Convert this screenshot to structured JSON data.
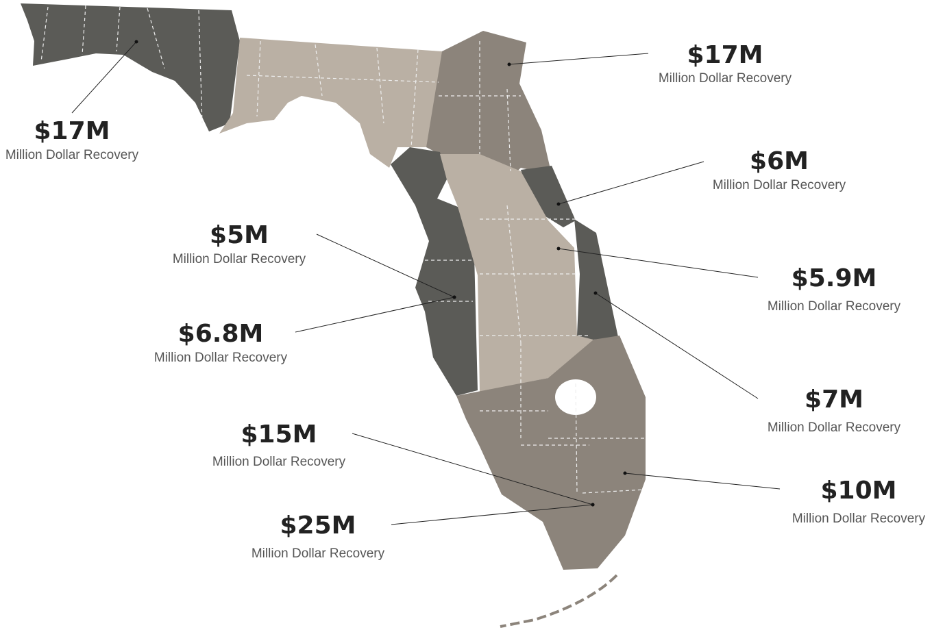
{
  "callouts": [
    {
      "amount": "$17M",
      "caption": "Million Dollar Recovery"
    },
    {
      "amount": "$17M",
      "caption": "Million Dollar Recovery"
    },
    {
      "amount": "$6M",
      "caption": "Million Dollar Recovery"
    },
    {
      "amount": "$5M",
      "caption": "Million Dollar Recovery"
    },
    {
      "amount": "$5.9M",
      "caption": "Million Dollar Recovery"
    },
    {
      "amount": "$6.8M",
      "caption": "Million Dollar Recovery"
    },
    {
      "amount": "$7M",
      "caption": "Million Dollar Recovery"
    },
    {
      "amount": "$15M",
      "caption": "Million Dollar Recovery"
    },
    {
      "amount": "$10M",
      "caption": "Million Dollar Recovery"
    },
    {
      "amount": "$25M",
      "caption": "Million Dollar Recovery"
    }
  ]
}
